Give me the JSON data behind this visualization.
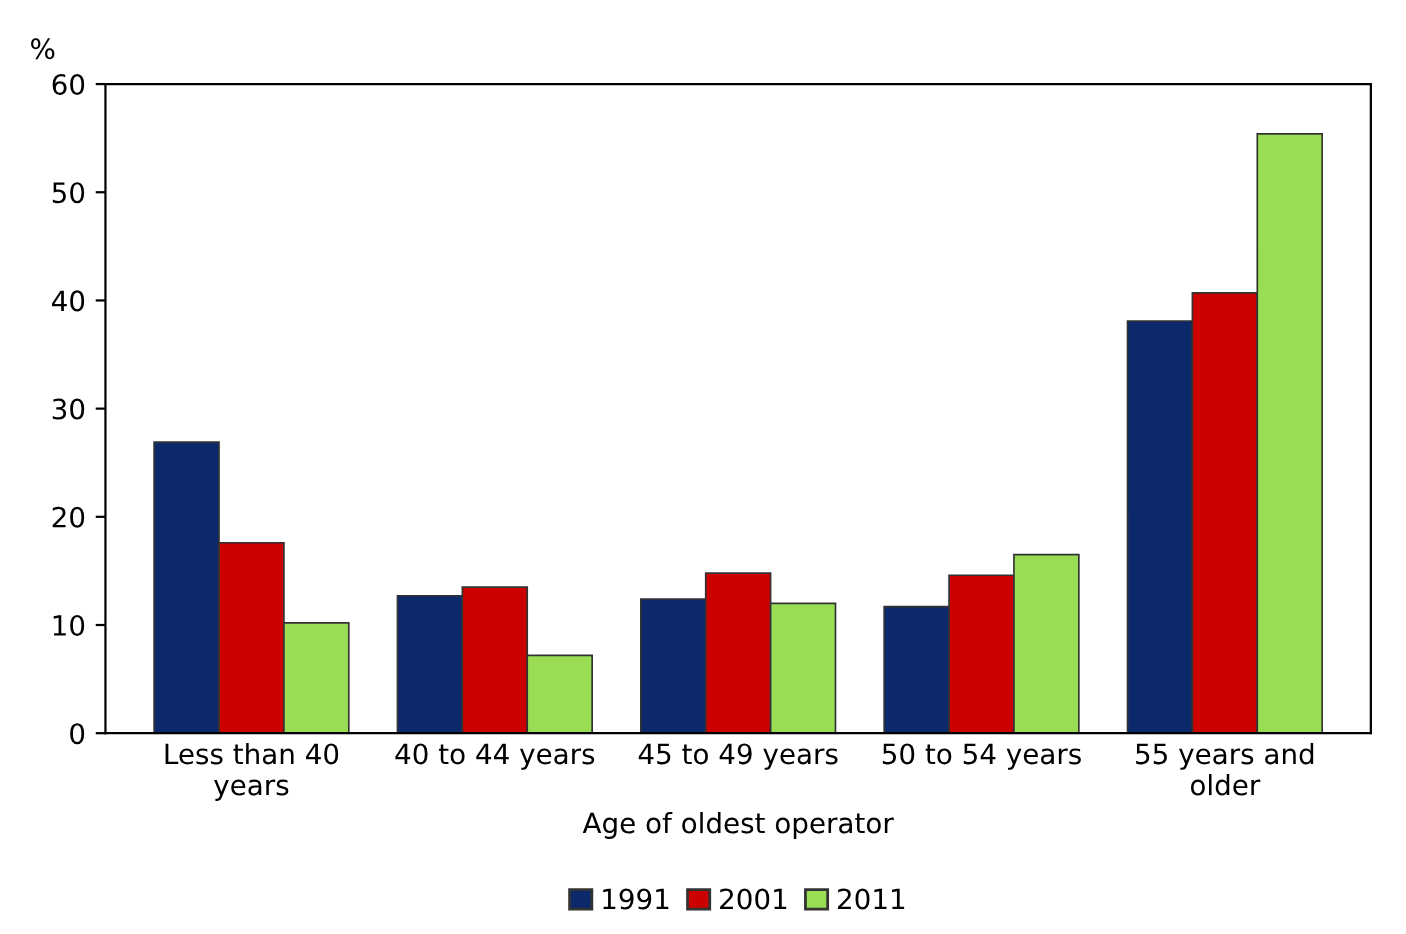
{
  "chart_data": {
    "type": "bar",
    "ylabel": "%",
    "xlabel": "Age of oldest operator",
    "categories": [
      "Less than 40 years",
      "40 to 44 years",
      "45 to 49 years",
      "50 to 54 years",
      "55 years and older"
    ],
    "series": [
      {
        "name": "1991",
        "color": "#0c2a6b",
        "values": [
          26.9,
          12.7,
          12.4,
          11.7,
          38.1
        ]
      },
      {
        "name": "2001",
        "color": "#cc0000",
        "values": [
          17.6,
          13.5,
          14.8,
          14.6,
          40.7
        ]
      },
      {
        "name": "2011",
        "color": "#99dd55",
        "values": [
          10.2,
          7.2,
          12.0,
          16.5,
          55.4
        ]
      }
    ],
    "ylim": [
      0,
      60
    ],
    "yticks": [
      0,
      10,
      20,
      30,
      40,
      50,
      60
    ],
    "grid": false,
    "legend": "bottom"
  }
}
